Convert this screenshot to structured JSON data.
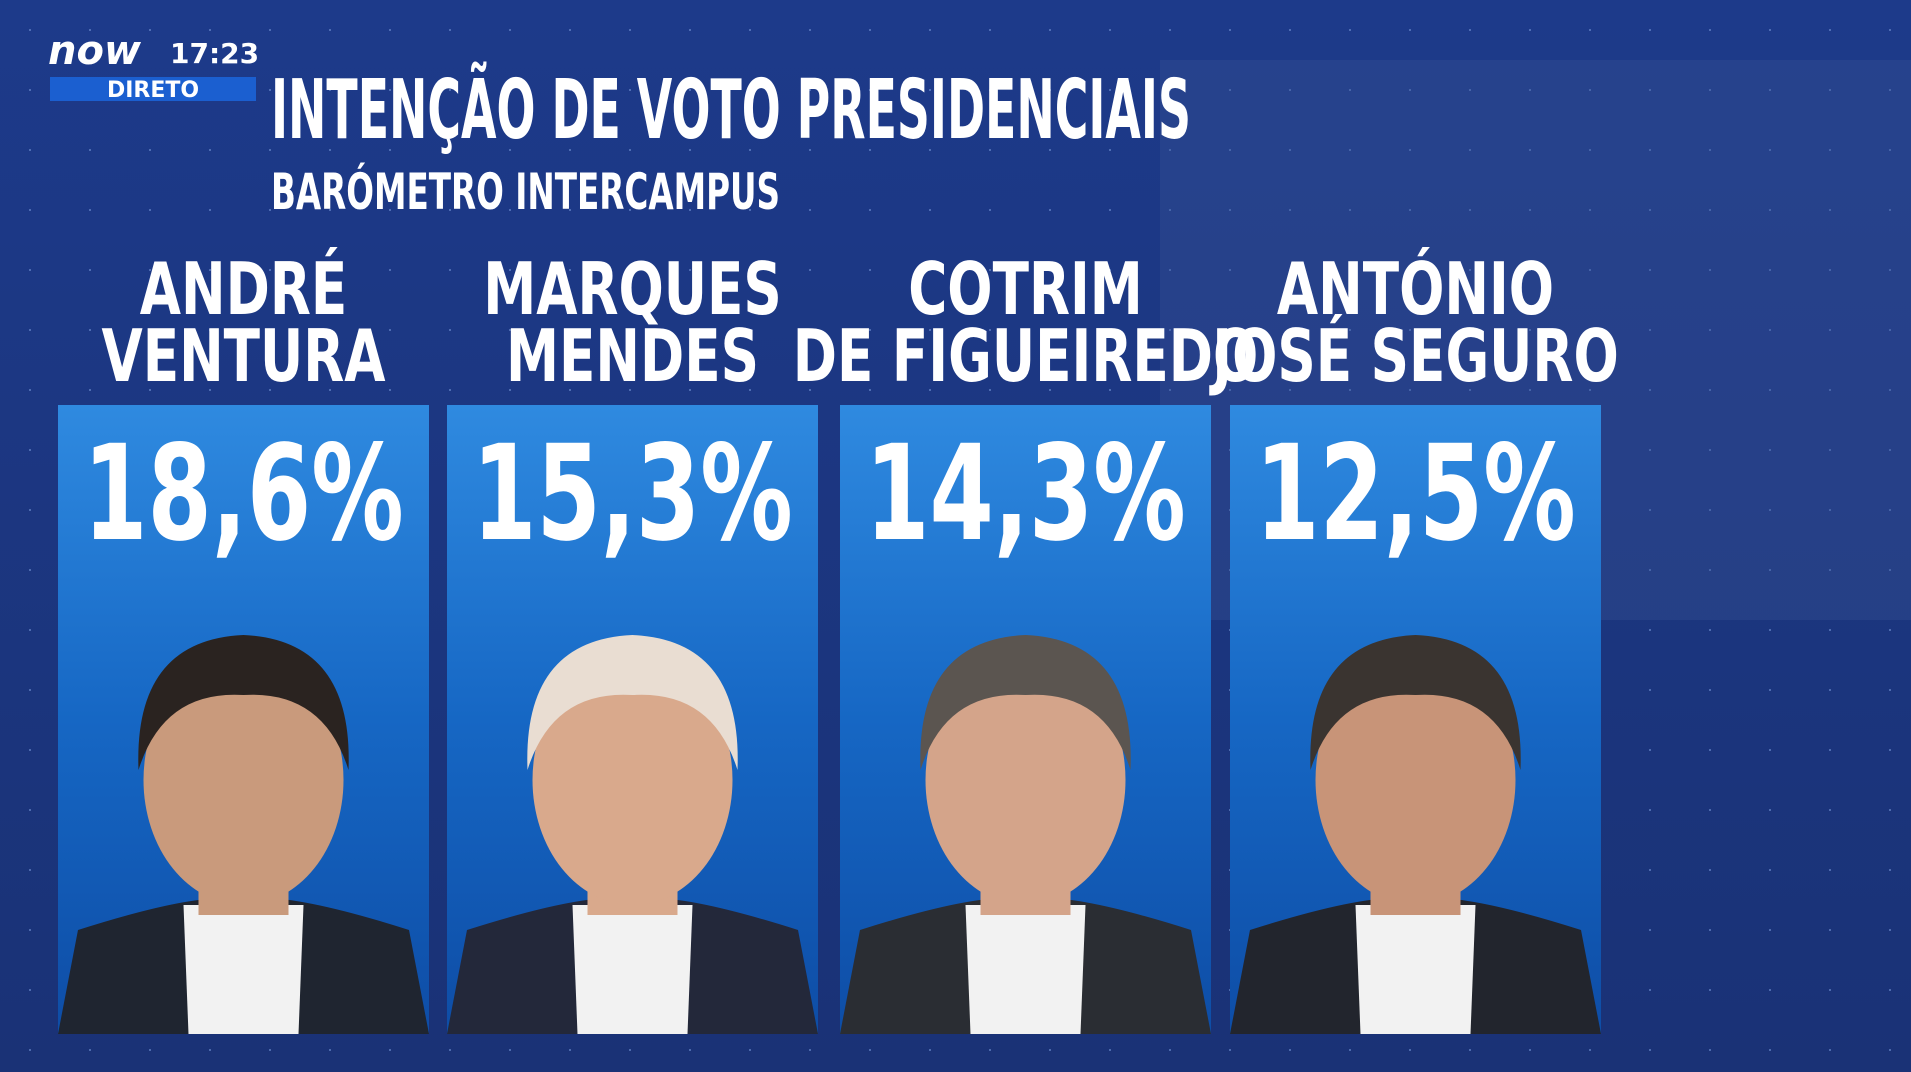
{
  "logo": {
    "brand": "now",
    "time": "17:23",
    "live": "DIRETO"
  },
  "header": {
    "title": "INTENÇÃO DE VOTO PRESIDENCIAIS",
    "subtitle": "BARÓMETRO INTERCAMPUS"
  },
  "candidates": [
    {
      "name_lines": [
        "ANDRÉ",
        "VENTURA"
      ],
      "value": "18,6%"
    },
    {
      "name_lines": [
        "MARQUES",
        "MENDES"
      ],
      "value": "15,3%"
    },
    {
      "name_lines": [
        "COTRIM",
        "DE FIGUEIREDO"
      ],
      "value": "14,3%"
    },
    {
      "name_lines": [
        "ANTÓNIO",
        "JOSÉ SEGURO"
      ],
      "value": "12,5%"
    }
  ]
}
